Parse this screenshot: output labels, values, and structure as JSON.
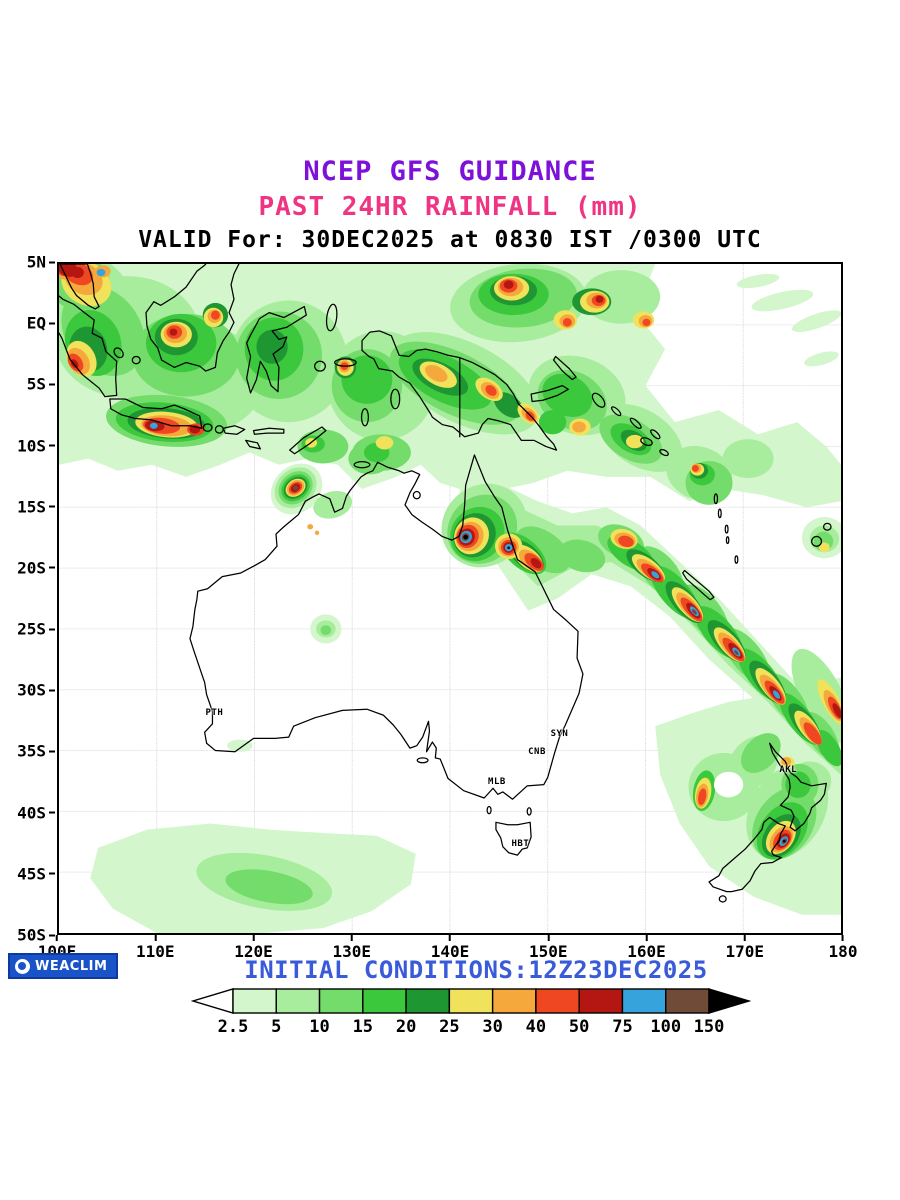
{
  "header": {
    "line1": "NCEP GFS GUIDANCE",
    "line2": "PAST 24HR RAINFALL (mm)",
    "line3": "VALID For: 30DEC2025 at 0830 IST /0300 UTC",
    "line1_color": "#7d11d9",
    "line2_color": "#ee3482"
  },
  "map": {
    "lat_ticks": [
      "5N",
      "EQ",
      "5S",
      "10S",
      "15S",
      "20S",
      "25S",
      "30S",
      "35S",
      "40S",
      "45S",
      "50S"
    ],
    "lon_ticks": [
      "100E",
      "110E",
      "120E",
      "130E",
      "140E",
      "150E",
      "160E",
      "170E",
      "180"
    ],
    "city_labels": [
      {
        "label": "PTH",
        "lon": 115.9,
        "lat": -31.9
      },
      {
        "label": "SYN",
        "lon": 151.2,
        "lat": -33.6
      },
      {
        "label": "CNB",
        "lon": 148.9,
        "lat": -35.1
      },
      {
        "label": "MLB",
        "lon": 144.8,
        "lat": -37.6
      },
      {
        "label": "HBT",
        "lon": 147.2,
        "lat": -42.7
      },
      {
        "label": "AKL",
        "lon": 174.6,
        "lat": -36.6
      }
    ]
  },
  "footer": {
    "initial_conditions": "INITIAL CONDITIONS:12Z23DEC2025",
    "initial_conditions_color": "#3a5bd9",
    "brand": "WEACLIM",
    "brand_bg": "#1a53c8"
  },
  "colorbar": {
    "labels": [
      "2.5",
      "5",
      "10",
      "15",
      "20",
      "25",
      "30",
      "40",
      "50",
      "75",
      "100",
      "150"
    ],
    "colors": [
      "#ffffff",
      "#d4f6cc",
      "#a8ec9e",
      "#74dc6a",
      "#3cc83c",
      "#1e9632",
      "#f0e25a",
      "#f5a83c",
      "#ee4722",
      "#b41712",
      "#36a3dc",
      "#6f4b38",
      "#000000"
    ]
  }
}
